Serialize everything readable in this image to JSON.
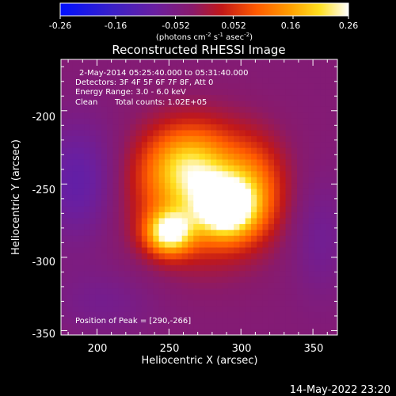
{
  "colorbar": {
    "ticks": [
      "-0.26",
      "-0.16",
      "-0.052",
      "0.052",
      "0.16",
      "0.26"
    ],
    "tick_values": [
      -0.26,
      -0.16,
      -0.052,
      0.052,
      0.16,
      0.26
    ],
    "range": [
      -0.26,
      0.26
    ],
    "unit_prefix": "(photons cm",
    "unit_exp1": "-2",
    "unit_mid": " s",
    "unit_exp2": "-1",
    "unit_mid2": " asec",
    "unit_exp3": "-2",
    "unit_suffix": ")",
    "colormap": "blue-purple-red-orange-yellow-white"
  },
  "title": "Reconstructed RHESSI Image",
  "info": {
    "line1": "2-May-2014 05:25:40.000 to 05:31:40.000",
    "line2": "Detectors: 3F 4F 5F 6F 7F 8F, Att 0",
    "line3": "Energy Range: 3.0 - 6.0 keV",
    "line4_a": "Clean",
    "line4_b": "Total counts: 1.02E+05"
  },
  "peak_label": "Position of Peak = [290,-266]",
  "footer_date": "14-May-2022 23:20",
  "chart_data": {
    "type": "heatmap",
    "title": "Reconstructed RHESSI Image",
    "xlabel": "Heliocentric X (arcsec)",
    "ylabel": "Heliocentric Y (arcsec)",
    "xlim": [
      175,
      367
    ],
    "ylim": [
      -353,
      -165
    ],
    "xticks": [
      200,
      250,
      300,
      350
    ],
    "yticks": [
      -200,
      -250,
      -300,
      -350
    ],
    "xtick_labels": [
      "200",
      "250",
      "300",
      "350"
    ],
    "ytick_labels": [
      "-200",
      "-250",
      "-300",
      "-350"
    ],
    "zlim": [
      -0.26,
      0.26
    ],
    "peak": {
      "x": 290,
      "y": -266
    },
    "sources": [
      {
        "x": 290,
        "y": -266,
        "amp": 0.26,
        "sx": 14,
        "sy": 14
      },
      {
        "x": 250,
        "y": -283,
        "amp": 0.25,
        "sx": 11,
        "sy": 10
      },
      {
        "x": 272,
        "y": -256,
        "amp": 0.18,
        "sx": 32,
        "sy": 30
      },
      {
        "x": 262,
        "y": -236,
        "amp": 0.13,
        "sx": 20,
        "sy": 18
      },
      {
        "x": 310,
        "y": -252,
        "amp": 0.08,
        "sx": 14,
        "sy": 22
      },
      {
        "x": 188,
        "y": -248,
        "amp": -0.07,
        "sx": 20,
        "sy": 28
      },
      {
        "x": 355,
        "y": -285,
        "amp": -0.04,
        "sx": 14,
        "sy": 28
      },
      {
        "x": 205,
        "y": -330,
        "amp": -0.03,
        "sx": 26,
        "sy": 16
      }
    ],
    "background": -0.035,
    "grid": false
  }
}
